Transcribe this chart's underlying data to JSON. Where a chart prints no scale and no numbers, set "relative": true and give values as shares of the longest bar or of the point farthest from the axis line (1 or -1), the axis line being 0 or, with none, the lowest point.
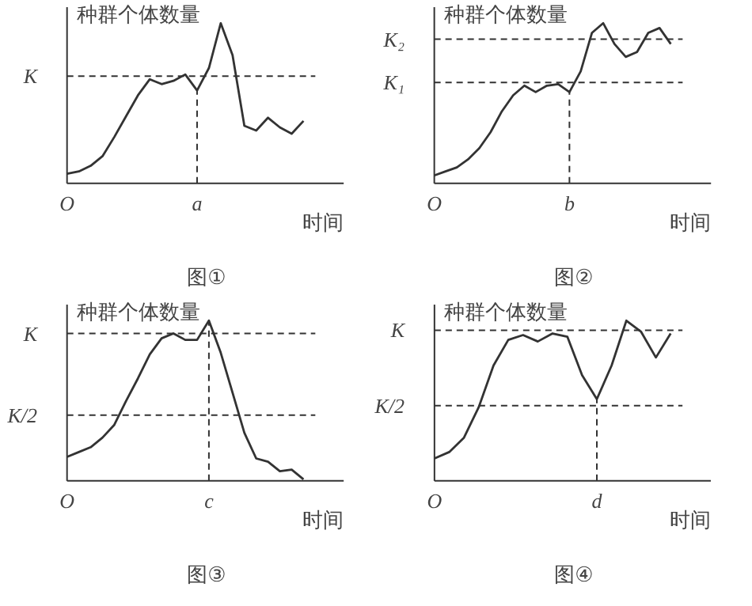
{
  "chart_data": [
    {
      "type": "line",
      "title": "图①",
      "xlabel": "时间",
      "ylabel": "种群个体数量",
      "relative": true,
      "color": "#333333",
      "line_style": "solid",
      "marker": "none",
      "grid": false,
      "categories": [
        "O",
        null,
        null,
        null,
        null,
        null,
        null,
        null,
        null,
        null,
        null,
        "a",
        null,
        null,
        null,
        null,
        null,
        null,
        null,
        null,
        null
      ],
      "values": [
        0.06,
        0.075,
        0.11,
        0.17,
        0.29,
        0.42,
        0.55,
        0.65,
        0.62,
        0.64,
        0.68,
        0.58,
        0.72,
        1,
        0.8,
        0.36,
        0.33,
        0.41,
        0.35,
        0.31,
        0.39
      ],
      "ref_lines": [
        {
          "axis": "y",
          "value": 0.67,
          "label": "K",
          "line_style": "dashed"
        },
        {
          "axis": "x",
          "value": "a",
          "line_style": "dashed"
        }
      ]
    },
    {
      "type": "line",
      "title": "图②",
      "xlabel": "时间",
      "ylabel": "种群个体数量",
      "relative": true,
      "color": "#333333",
      "line_style": "solid",
      "marker": "none",
      "grid": false,
      "categories": [
        "O",
        null,
        null,
        null,
        null,
        null,
        null,
        null,
        null,
        null,
        null,
        null,
        "b",
        null,
        null,
        null,
        null,
        null,
        null,
        null,
        null,
        null
      ],
      "values": [
        0.05,
        0.075,
        0.1,
        0.15,
        0.22,
        0.32,
        0.45,
        0.55,
        0.61,
        0.57,
        0.61,
        0.62,
        0.57,
        0.7,
        0.94,
        1,
        0.87,
        0.79,
        0.82,
        0.94,
        0.97,
        0.87
      ],
      "ref_lines": [
        {
          "axis": "y",
          "value": 0.9,
          "label": "K₂",
          "line_style": "dashed"
        },
        {
          "axis": "y",
          "value": 0.63,
          "label": "K₁",
          "line_style": "dashed"
        },
        {
          "axis": "x",
          "value": "b",
          "line_style": "dashed"
        }
      ]
    },
    {
      "type": "line",
      "title": "图③",
      "xlabel": "时间",
      "ylabel": "种群个体数量",
      "relative": true,
      "color": "#333333",
      "line_style": "solid",
      "marker": "none",
      "grid": false,
      "categories": [
        "O",
        null,
        null,
        null,
        null,
        null,
        null,
        null,
        null,
        null,
        null,
        null,
        "c",
        null,
        null,
        null,
        null,
        null,
        null,
        null,
        null
      ],
      "values": [
        0.15,
        0.18,
        0.21,
        0.27,
        0.35,
        0.5,
        0.64,
        0.79,
        0.89,
        0.92,
        0.88,
        0.88,
        1,
        0.8,
        0.55,
        0.3,
        0.14,
        0.12,
        0.06,
        0.07,
        0.01
      ],
      "ref_lines": [
        {
          "axis": "y",
          "value": 0.92,
          "label": "K",
          "line_style": "dashed"
        },
        {
          "axis": "y",
          "value": 0.41,
          "label": "K/2",
          "line_style": "dashed"
        },
        {
          "axis": "x",
          "value": "c",
          "line_style": "dashed"
        }
      ]
    },
    {
      "type": "line",
      "title": "图④",
      "xlabel": "时间",
      "ylabel": "种群个体数量",
      "relative": true,
      "color": "#333333",
      "line_style": "solid",
      "marker": "none",
      "grid": false,
      "categories": [
        "O",
        null,
        null,
        null,
        null,
        null,
        null,
        null,
        null,
        null,
        null,
        "d",
        null,
        null,
        null,
        null,
        null
      ],
      "values": [
        0.14,
        0.18,
        0.27,
        0.46,
        0.72,
        0.88,
        0.91,
        0.87,
        0.92,
        0.9,
        0.66,
        0.51,
        0.72,
        1,
        0.93,
        0.77,
        0.92
      ],
      "ref_lines": [
        {
          "axis": "y",
          "value": 0.94,
          "label": "K",
          "line_style": "dashed"
        },
        {
          "axis": "y",
          "value": 0.47,
          "label": "K/2",
          "line_style": "dashed"
        },
        {
          "axis": "x",
          "value": "d",
          "line_style": "dashed"
        }
      ]
    }
  ]
}
